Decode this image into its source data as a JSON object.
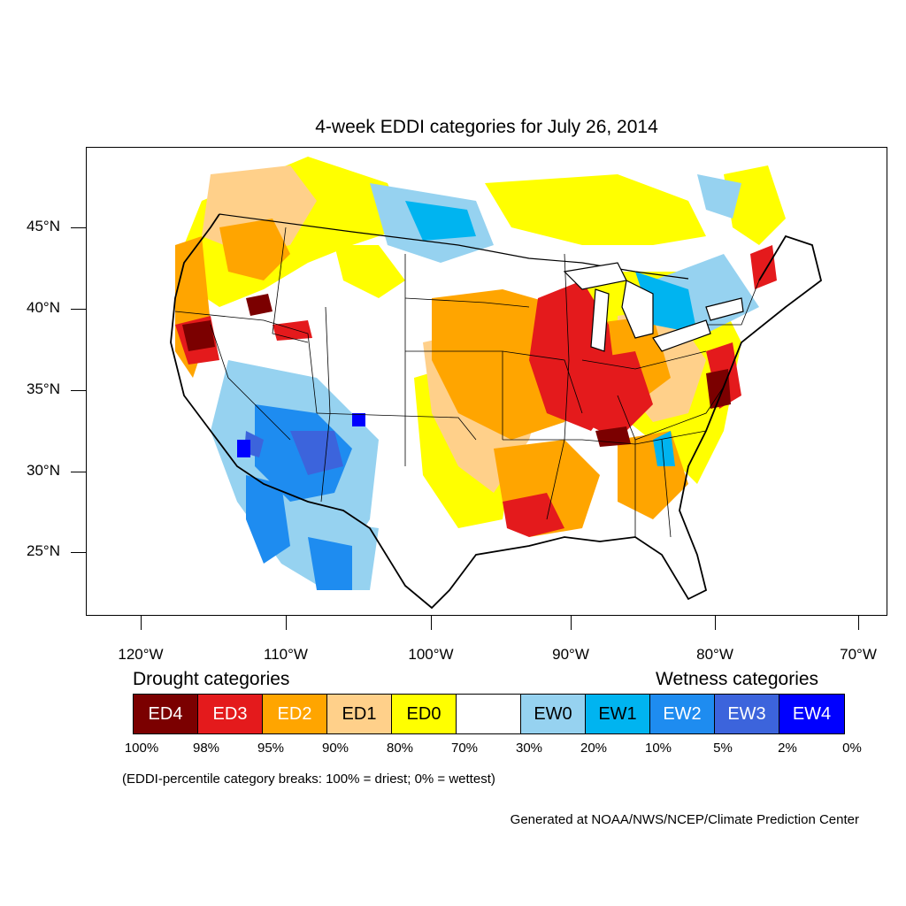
{
  "title": "4-week EDDI categories for July 26, 2014",
  "lat_labels": [
    "45°N",
    "40°N",
    "35°N",
    "30°N",
    "25°N"
  ],
  "lon_labels": [
    "120°W",
    "110°W",
    "100°W",
    "90°W",
    "80°W",
    "70°W"
  ],
  "legend": {
    "drought_heading": "Drought categories",
    "wetness_heading": "Wetness categories",
    "categories": [
      {
        "label": "ED4",
        "color": "#7b0000",
        "text_color": "#ffffff"
      },
      {
        "label": "ED3",
        "color": "#e41a1c",
        "text_color": "#ffffff"
      },
      {
        "label": "ED2",
        "color": "#ffa500",
        "text_color": "#ffffff"
      },
      {
        "label": "ED1",
        "color": "#ffd08a",
        "text_color": "#000000"
      },
      {
        "label": "ED0",
        "color": "#ffff00",
        "text_color": "#000000"
      },
      {
        "label": "",
        "color": "#ffffff",
        "text_color": "#000000"
      },
      {
        "label": "EW0",
        "color": "#96d2f0",
        "text_color": "#000000"
      },
      {
        "label": "EW1",
        "color": "#00b4f0",
        "text_color": "#000000"
      },
      {
        "label": "EW2",
        "color": "#1e8cf0",
        "text_color": "#ffffff"
      },
      {
        "label": "EW3",
        "color": "#3c64dc",
        "text_color": "#ffffff"
      },
      {
        "label": "EW4",
        "color": "#0000ff",
        "text_color": "#ffffff"
      }
    ],
    "breaks": [
      "100%",
      "98%",
      "95%",
      "90%",
      "80%",
      "70%",
      "30%",
      "20%",
      "10%",
      "5%",
      "2%",
      "0%"
    ]
  },
  "note": "(EDDI-percentile category breaks: 100% = driest; 0% = wettest)",
  "credit": "Generated at NOAA/NWS/NCEP/Climate Prediction Center"
}
